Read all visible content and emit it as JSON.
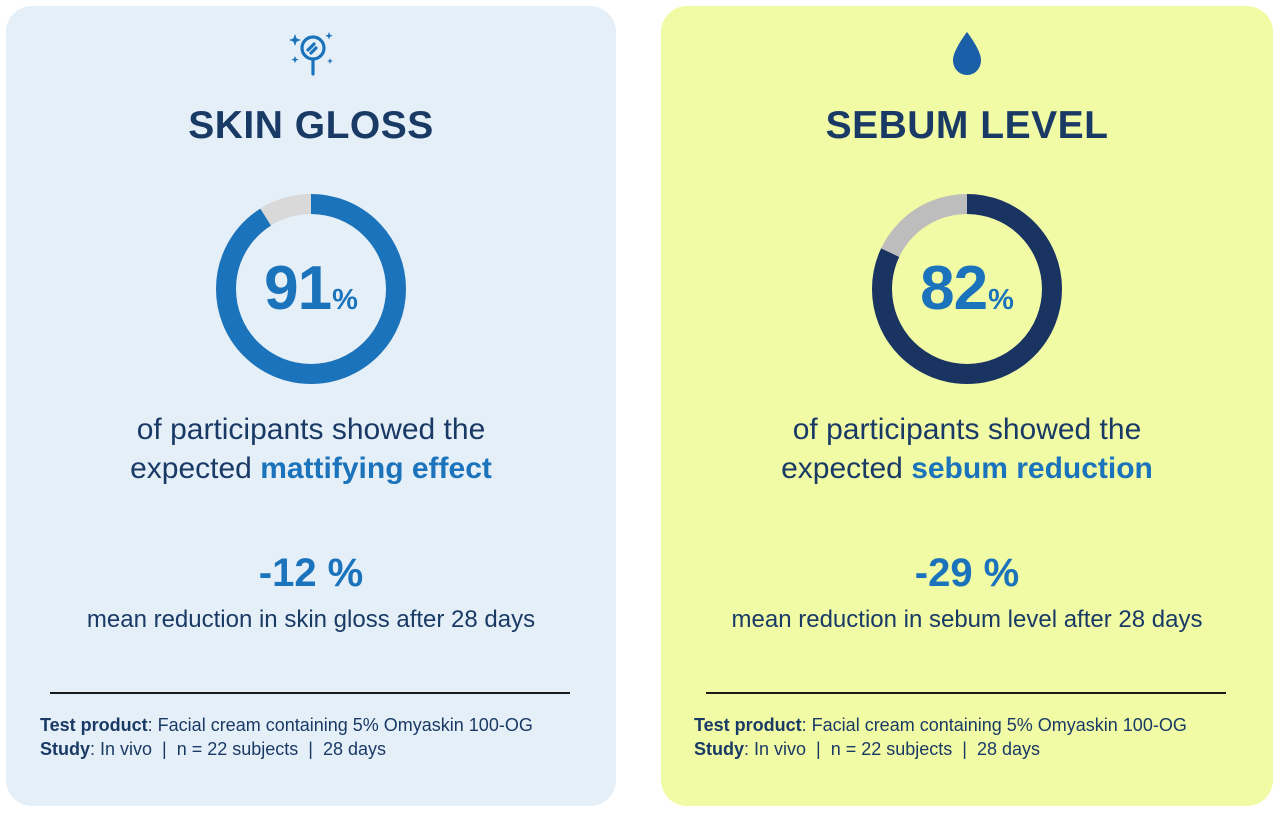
{
  "cards": [
    {
      "icon": "magnifier-sparkle-icon",
      "title": "SKIN GLOSS",
      "percent": 91,
      "percent_number": "91",
      "percent_symbol": "%",
      "desc_line1": "of participants showed the",
      "desc_prefix": "expected ",
      "desc_highlight": "mattifying effect",
      "stat_value": "-12 %",
      "stat_label": "mean reduction in skin gloss after 28 days",
      "test_product_label": "Test product",
      "test_product_value": ": Facial cream containing 5% Omyaskin 100-OG",
      "study_label": "Study",
      "study_value": ": In vivo  |  n = 22 subjects  |  28 days",
      "ring_color": "#1b73bb",
      "track_color": "#d9d9d9",
      "background": "#e5eff8"
    },
    {
      "icon": "water-drop-icon",
      "title": "SEBUM LEVEL",
      "percent": 82,
      "percent_number": "82",
      "percent_symbol": "%",
      "desc_line1": "of participants showed the",
      "desc_prefix": "expected ",
      "desc_highlight": "sebum reduction",
      "stat_value": "-29 %",
      "stat_label": "mean reduction in sebum level after 28 days",
      "test_product_label": "Test product",
      "test_product_value": ": Facial cream containing 5% Omyaskin 100-OG",
      "study_label": "Study",
      "study_value": ": In vivo  |  n = 22 subjects  |  28 days",
      "ring_color": "#1a3462",
      "track_color": "#bdbdbd",
      "background": "#f1fba5"
    }
  ],
  "colors": {
    "title": "#1a3a66",
    "accent": "#1b73bb"
  }
}
